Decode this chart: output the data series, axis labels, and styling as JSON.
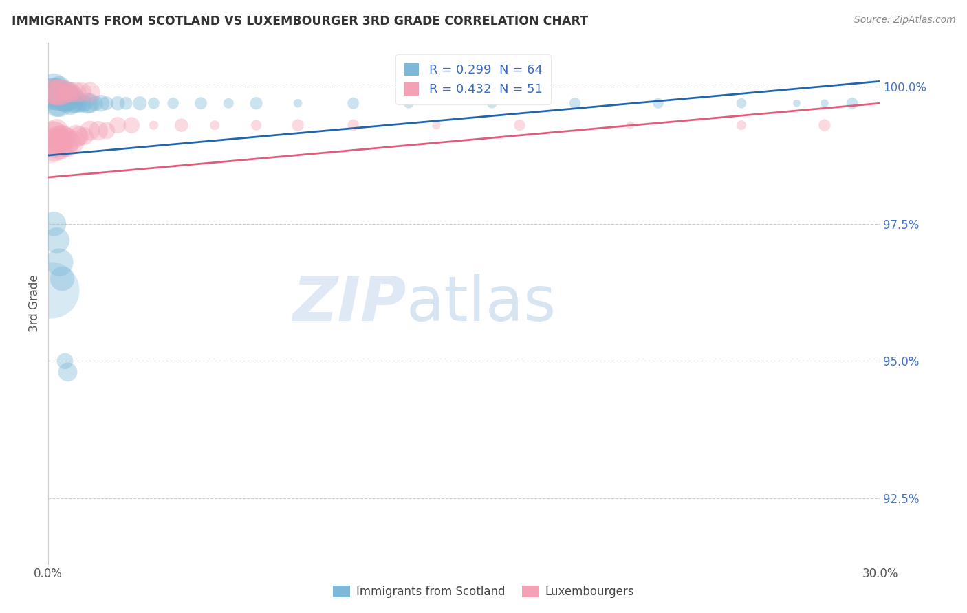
{
  "title": "IMMIGRANTS FROM SCOTLAND VS LUXEMBOURGER 3RD GRADE CORRELATION CHART",
  "source": "Source: ZipAtlas.com",
  "ylabel": "3rd Grade",
  "yaxis_labels": [
    "100.0%",
    "97.5%",
    "95.0%",
    "92.5%"
  ],
  "yaxis_values": [
    1.0,
    0.975,
    0.95,
    0.925
  ],
  "xmin": 0.0,
  "xmax": 0.3,
  "ymin": 0.913,
  "ymax": 1.008,
  "legend_label1": "Immigrants from Scotland",
  "legend_label2": "Luxembourgers",
  "scotland_color": "#7db8d8",
  "luxembourg_color": "#f4a0b5",
  "scotland_line_color": "#2166ac",
  "luxembourg_line_color": "#e05c7a",
  "scotland_R": 0.299,
  "scotland_N": 64,
  "luxembourg_R": 0.432,
  "luxembourg_N": 51,
  "watermark_zip": "ZIP",
  "watermark_atlas": "atlas",
  "background_color": "#ffffff",
  "grid_color": "#cccccc",
  "scotland_x": [
    0.001,
    0.001,
    0.001,
    0.002,
    0.002,
    0.002,
    0.002,
    0.003,
    0.003,
    0.003,
    0.003,
    0.003,
    0.004,
    0.004,
    0.004,
    0.004,
    0.005,
    0.005,
    0.005,
    0.005,
    0.006,
    0.006,
    0.006,
    0.007,
    0.007,
    0.007,
    0.008,
    0.008,
    0.009,
    0.009,
    0.01,
    0.01,
    0.011,
    0.012,
    0.013,
    0.014,
    0.015,
    0.017,
    0.019,
    0.021,
    0.025,
    0.028,
    0.033,
    0.038,
    0.045,
    0.055,
    0.065,
    0.075,
    0.09,
    0.11,
    0.13,
    0.16,
    0.19,
    0.22,
    0.25,
    0.27,
    0.28,
    0.29,
    0.002,
    0.003,
    0.004,
    0.005,
    0.006,
    0.007
  ],
  "scotland_y": [
    0.999,
    0.999,
    0.998,
    1.0,
    0.999,
    0.999,
    0.998,
    1.0,
    0.999,
    0.999,
    0.998,
    0.997,
    1.0,
    0.999,
    0.998,
    0.997,
    0.999,
    0.999,
    0.998,
    0.997,
    0.999,
    0.998,
    0.997,
    0.999,
    0.998,
    0.997,
    0.998,
    0.997,
    0.998,
    0.997,
    0.998,
    0.997,
    0.997,
    0.997,
    0.997,
    0.997,
    0.997,
    0.997,
    0.997,
    0.997,
    0.997,
    0.997,
    0.997,
    0.997,
    0.997,
    0.997,
    0.997,
    0.997,
    0.997,
    0.997,
    0.997,
    0.997,
    0.997,
    0.997,
    0.997,
    0.997,
    0.997,
    0.997,
    0.975,
    0.972,
    0.968,
    0.965,
    0.95,
    0.948
  ],
  "luxembourg_x": [
    0.001,
    0.001,
    0.002,
    0.002,
    0.002,
    0.003,
    0.003,
    0.003,
    0.004,
    0.004,
    0.004,
    0.005,
    0.005,
    0.005,
    0.006,
    0.006,
    0.007,
    0.007,
    0.008,
    0.009,
    0.01,
    0.011,
    0.013,
    0.015,
    0.018,
    0.021,
    0.025,
    0.03,
    0.038,
    0.048,
    0.06,
    0.075,
    0.09,
    0.11,
    0.14,
    0.17,
    0.21,
    0.25,
    0.28,
    0.001,
    0.002,
    0.003,
    0.004,
    0.005,
    0.006,
    0.007,
    0.008,
    0.009,
    0.01,
    0.012,
    0.015
  ],
  "luxembourg_y": [
    0.99,
    0.989,
    0.991,
    0.99,
    0.989,
    0.992,
    0.99,
    0.989,
    0.991,
    0.99,
    0.989,
    0.991,
    0.99,
    0.989,
    0.991,
    0.989,
    0.991,
    0.989,
    0.99,
    0.99,
    0.991,
    0.991,
    0.991,
    0.992,
    0.992,
    0.992,
    0.993,
    0.993,
    0.993,
    0.993,
    0.993,
    0.993,
    0.993,
    0.993,
    0.993,
    0.993,
    0.993,
    0.993,
    0.993,
    0.999,
    0.999,
    0.999,
    0.999,
    0.999,
    0.999,
    0.999,
    0.999,
    0.999,
    0.999,
    0.999,
    0.999
  ]
}
